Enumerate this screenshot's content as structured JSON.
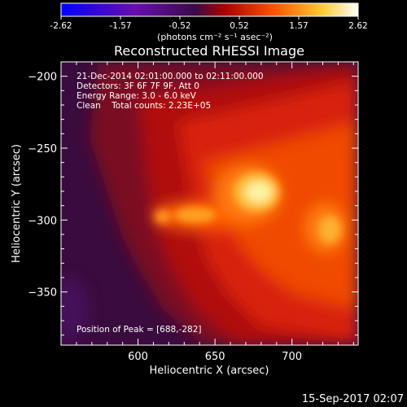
{
  "colorbar": {
    "ticks": [
      "-2.62",
      "-1.57",
      "-0.52",
      "0.52",
      "1.57",
      "2.62"
    ],
    "units": "(photons cm⁻² s⁻¹ asec⁻²)"
  },
  "footer": {
    "date": "15-Sep-2017 02:07"
  },
  "chart_data": {
    "type": "heatmap",
    "title": "Reconstructed RHESSI Image",
    "xlabel": "Heliocentric X (arcsec)",
    "ylabel": "Heliocentric Y (arcsec)",
    "xlim": [
      550,
      743
    ],
    "ylim": [
      -387,
      -190
    ],
    "xticks": [
      600,
      650,
      700
    ],
    "xtick_labels": [
      "600",
      "650",
      "700"
    ],
    "yticks": [
      -200,
      -250,
      -300,
      -350
    ],
    "ytick_labels": [
      "−200",
      "−250",
      "−300",
      "−350"
    ],
    "colorbar_range": [
      -2.62,
      2.62
    ],
    "colormap": [
      "#0000ff",
      "#6a0dad",
      "#3a0a4a",
      "#cc0000",
      "#ff7700",
      "#ffff66",
      "#ffffff"
    ],
    "annotations": [
      "21-Dec-2014 02:01:00.000 to 02:11:00.000",
      "Detectors: 3F 6F 7F 9F, Att 0",
      "Energy Range: 3.0 - 6.0 keV",
      "Clean    Total counts: 2.23E+05"
    ],
    "peak_label": "Position of Peak = [688,-282]",
    "peak": [
      688,
      -282
    ]
  }
}
